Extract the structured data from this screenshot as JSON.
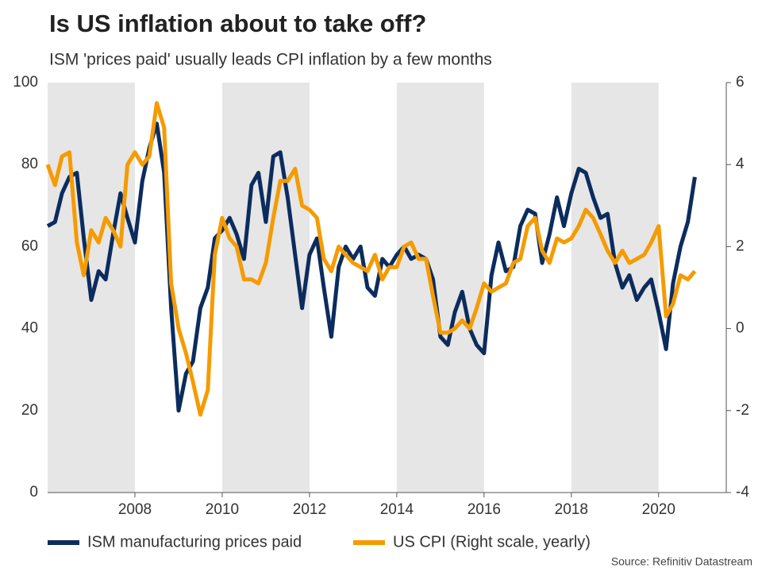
{
  "chart_data": {
    "type": "line",
    "title": "Is US inflation about to take off?",
    "subtitle": "ISM 'prices paid' usually leads CPI inflation by a few months",
    "source": "Source: Refinitiv Datastream",
    "x": [
      2006,
      2006.17,
      2006.33,
      2006.5,
      2006.67,
      2006.83,
      2007,
      2007.17,
      2007.33,
      2007.5,
      2007.67,
      2007.83,
      2008,
      2008.17,
      2008.33,
      2008.5,
      2008.67,
      2008.83,
      2009,
      2009.17,
      2009.33,
      2009.5,
      2009.67,
      2009.83,
      2010,
      2010.17,
      2010.33,
      2010.5,
      2010.67,
      2010.83,
      2011,
      2011.17,
      2011.33,
      2011.5,
      2011.67,
      2011.83,
      2012,
      2012.17,
      2012.33,
      2012.5,
      2012.67,
      2012.83,
      2013,
      2013.17,
      2013.33,
      2013.5,
      2013.67,
      2013.83,
      2014,
      2014.17,
      2014.33,
      2014.5,
      2014.67,
      2014.83,
      2015,
      2015.17,
      2015.33,
      2015.5,
      2015.67,
      2015.83,
      2016,
      2016.17,
      2016.33,
      2016.5,
      2016.67,
      2016.83,
      2017,
      2017.17,
      2017.33,
      2017.5,
      2017.67,
      2017.83,
      2018,
      2018.17,
      2018.33,
      2018.5,
      2018.67,
      2018.83,
      2019,
      2019.17,
      2019.33,
      2019.5,
      2019.67,
      2019.83,
      2020,
      2020.17,
      2020.33,
      2020.5,
      2020.67,
      2020.83
    ],
    "xlim": [
      2006,
      2021.55
    ],
    "xticks": [
      2008,
      2010,
      2012,
      2014,
      2016,
      2018,
      2020
    ],
    "ylim": [
      0,
      100
    ],
    "yticks": [
      0,
      20,
      40,
      60,
      80,
      100
    ],
    "y2lim": [
      -4,
      6
    ],
    "y2ticks": [
      -4,
      -2,
      0,
      2,
      4,
      6
    ],
    "shading": "#e6e6e6",
    "series": [
      {
        "name": "ISM manufacturing prices paid",
        "color": "#0c2c5e",
        "values": [
          65,
          66,
          73,
          77,
          78,
          62,
          47,
          54,
          52,
          63,
          73,
          67,
          61,
          76,
          84,
          90,
          78,
          45,
          20,
          29,
          32,
          45,
          50,
          62,
          64,
          67,
          63,
          57,
          75,
          78,
          66,
          82,
          83,
          72,
          58,
          45,
          58,
          62,
          50,
          38,
          55,
          60,
          57,
          60,
          50,
          48,
          57,
          55,
          58,
          60,
          57,
          58,
          57,
          52,
          38,
          36,
          44,
          49,
          40,
          36,
          34,
          53,
          61,
          54,
          55,
          65,
          69,
          68,
          56,
          63,
          72,
          65,
          73,
          79,
          78,
          72,
          67,
          68,
          56,
          50,
          53,
          47,
          50,
          52,
          44,
          35,
          51,
          60,
          66,
          77
        ]
      },
      {
        "name": "US CPI (Right scale, yearly)",
        "color": "#f59b00",
        "axis": "y2",
        "values": [
          4.0,
          3.5,
          4.2,
          4.3,
          2.1,
          1.3,
          2.4,
          2.1,
          2.7,
          2.4,
          2.0,
          4.0,
          4.3,
          4.0,
          4.2,
          5.5,
          4.9,
          1.1,
          0.0,
          -0.6,
          -1.3,
          -2.1,
          -1.5,
          1.8,
          2.7,
          2.2,
          2.0,
          1.2,
          1.2,
          1.1,
          1.6,
          2.7,
          3.6,
          3.6,
          3.9,
          3.0,
          2.9,
          2.7,
          1.7,
          1.4,
          2.0,
          1.8,
          1.6,
          1.5,
          1.4,
          1.8,
          1.2,
          1.5,
          1.5,
          2.0,
          2.1,
          1.7,
          1.7,
          0.8,
          -0.1,
          -0.1,
          0.0,
          0.2,
          0.0,
          0.5,
          1.1,
          0.9,
          1.0,
          1.1,
          1.6,
          1.7,
          2.5,
          2.7,
          1.9,
          1.6,
          2.2,
          2.1,
          2.2,
          2.5,
          2.9,
          2.7,
          2.3,
          1.9,
          1.6,
          1.9,
          1.6,
          1.7,
          1.8,
          2.1,
          2.5,
          0.3,
          0.6,
          1.3,
          1.2,
          1.4
        ]
      }
    ]
  }
}
